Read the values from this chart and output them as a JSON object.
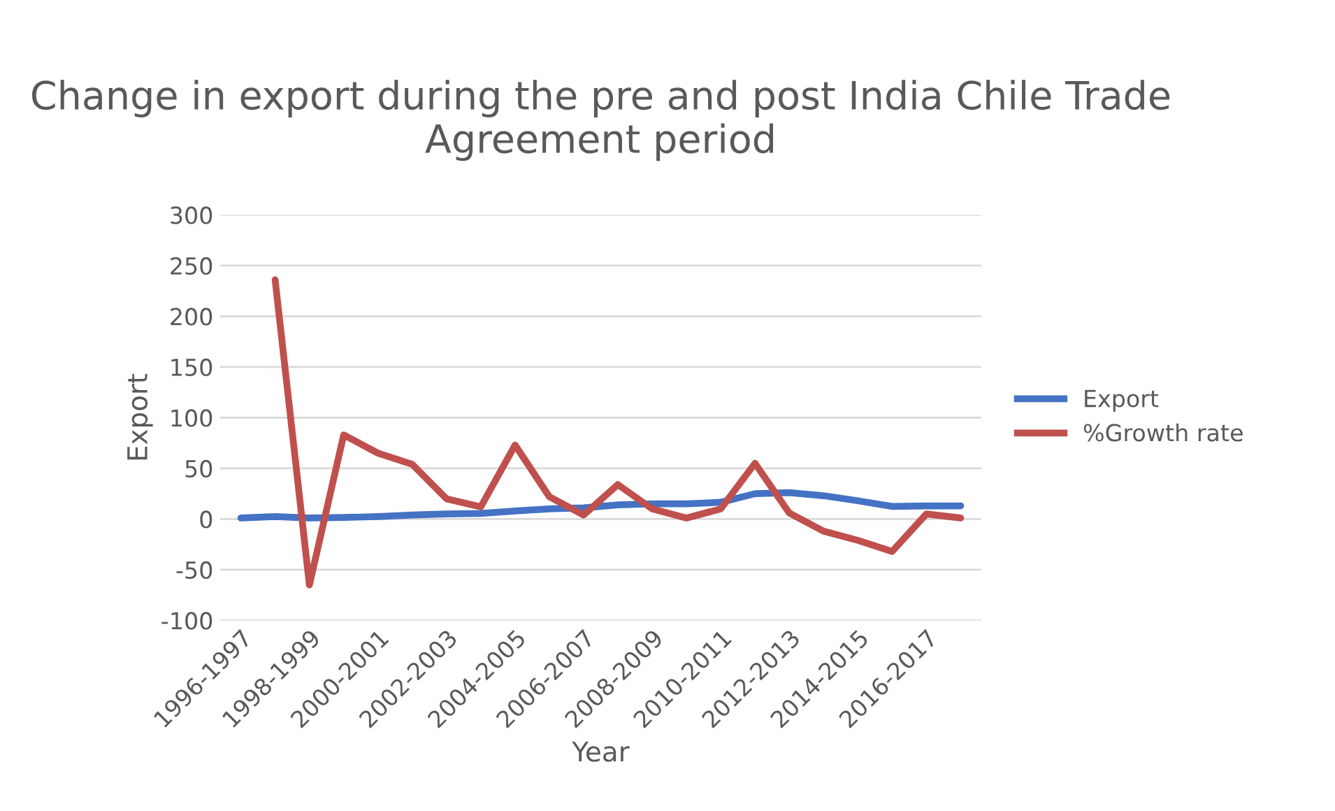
{
  "chart_data": {
    "type": "line",
    "title": "Change in export during the pre and post India Chile Trade Agreement period",
    "xlabel": "Year",
    "ylabel": "Export",
    "categories": [
      "1996-1997",
      null,
      "1998-1999",
      null,
      "2000-2001",
      null,
      "2002-2003",
      null,
      "2004-2005",
      null,
      "2006-2007",
      null,
      "2008-2009",
      null,
      "2010-2011",
      null,
      "2012-2013",
      null,
      "2014-2015",
      null,
      "2016-2017",
      null
    ],
    "series": [
      {
        "name": "Export",
        "color": "#4472c4",
        "values": [
          1,
          2.5,
          1,
          1.5,
          2.5,
          4,
          5,
          5.5,
          8,
          10,
          11,
          14,
          15,
          15,
          16.5,
          25,
          26,
          23,
          18,
          12.5,
          13,
          13
        ]
      },
      {
        "name": "%Growth rate",
        "color": "#c0504d",
        "values": [
          null,
          236,
          -65,
          83,
          65,
          54,
          20,
          12,
          73,
          22,
          4,
          34,
          10,
          1,
          10,
          55,
          6,
          -12,
          -21,
          -32,
          5,
          1
        ]
      }
    ],
    "ylim": [
      -100,
      300
    ],
    "yticks": [
      -100,
      -50,
      0,
      50,
      100,
      150,
      200,
      250,
      300
    ],
    "grid": "y",
    "legend": "right",
    "marker": "none",
    "line_style": "solid"
  }
}
